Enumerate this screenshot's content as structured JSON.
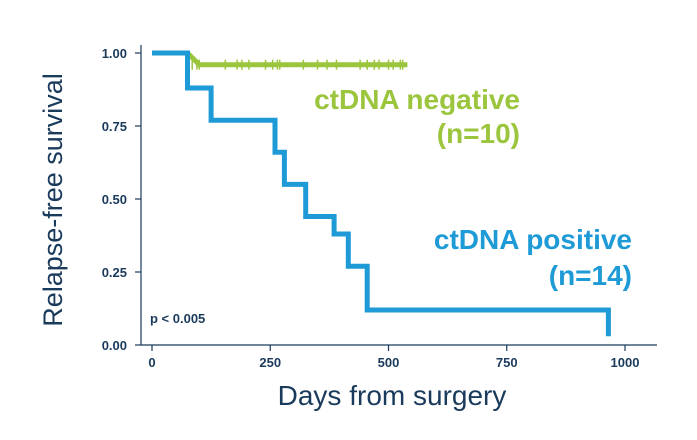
{
  "chart_data": {
    "type": "line",
    "step": true,
    "xlabel": "Days from surgery",
    "ylabel": "Relapse-free survival",
    "xlim": [
      -25,
      1070
    ],
    "ylim": [
      0,
      1.05
    ],
    "x_ticks": [
      0,
      250,
      500,
      750,
      1000
    ],
    "x_tick_labels": [
      "0",
      "250",
      "500",
      "750",
      "1000"
    ],
    "y_ticks": [
      0,
      0.25,
      0.5,
      0.75,
      1.0
    ],
    "y_tick_labels": [
      "0.00",
      "0.25",
      "0.50",
      "0.75",
      "1.00"
    ],
    "annotation": "p < 0.005",
    "series": [
      {
        "name": "ctDNA negative",
        "label_lines": [
          "ctDNA negative",
          "(n=10)"
        ],
        "color": "#9bc53d",
        "points": [
          [
            0,
            1.0
          ],
          [
            75,
            1.0
          ],
          [
            100,
            0.96
          ],
          [
            540,
            0.96
          ]
        ],
        "censor_x": [
          85,
          95,
          100,
          155,
          180,
          190,
          205,
          240,
          255,
          265,
          270,
          320,
          350,
          370,
          390,
          440,
          455,
          470,
          480,
          500,
          510,
          525,
          530
        ]
      },
      {
        "name": "ctDNA positive",
        "label_lines": [
          "ctDNA positive",
          "(n=14)"
        ],
        "color": "#1e9ad6",
        "points": [
          [
            0,
            1.0
          ],
          [
            75,
            1.0
          ],
          [
            75,
            0.88
          ],
          [
            125,
            0.88
          ],
          [
            125,
            0.77
          ],
          [
            260,
            0.77
          ],
          [
            260,
            0.66
          ],
          [
            280,
            0.66
          ],
          [
            280,
            0.55
          ],
          [
            325,
            0.55
          ],
          [
            325,
            0.44
          ],
          [
            385,
            0.44
          ],
          [
            385,
            0.38
          ],
          [
            415,
            0.38
          ],
          [
            415,
            0.27
          ],
          [
            455,
            0.27
          ],
          [
            455,
            0.12
          ],
          [
            965,
            0.12
          ],
          [
            965,
            0.03
          ]
        ],
        "censor_x": []
      }
    ]
  }
}
